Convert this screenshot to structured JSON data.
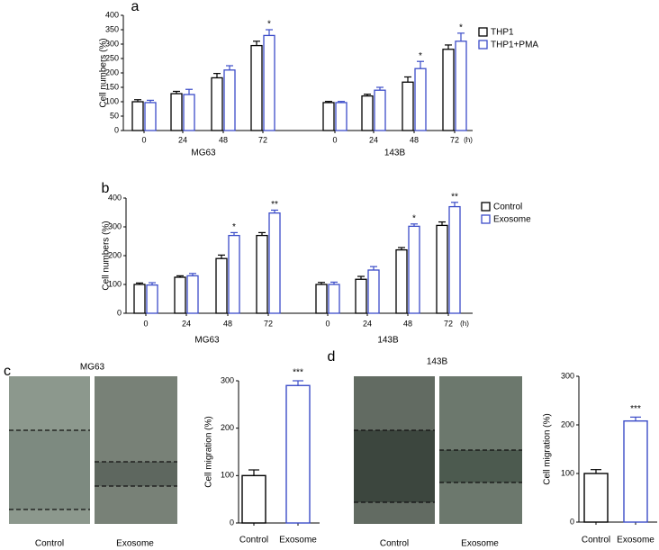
{
  "chart_data": [
    {
      "panel": "a",
      "type": "bar",
      "ylabel": "Cell numbers (%)",
      "ylim": [
        0,
        400
      ],
      "yticks": [
        0,
        50,
        100,
        150,
        200,
        250,
        300,
        350,
        400
      ],
      "x_unit": "(h)",
      "groups": [
        {
          "name": "MG63",
          "categories": [
            "0",
            "24",
            "48",
            "72"
          ]
        },
        {
          "name": "143B",
          "categories": [
            "0",
            "24",
            "48",
            "72"
          ]
        }
      ],
      "series": [
        {
          "name": "THP1",
          "color": "#000000",
          "values": [
            [
              100,
              128,
              183,
              295
            ],
            [
              97,
              120,
              168,
              282
            ]
          ],
          "errors": [
            [
              7,
              8,
              15,
              15
            ],
            [
              4,
              6,
              18,
              15
            ]
          ]
        },
        {
          "name": "THP1+PMA",
          "color": "#3b4cc8",
          "values": [
            [
              97,
              125,
              210,
              330
            ],
            [
              97,
              140,
              215,
              310
            ]
          ],
          "errors": [
            [
              8,
              18,
              15,
              20
            ],
            [
              4,
              10,
              25,
              28
            ]
          ],
          "significance": [
            [
              null,
              null,
              null,
              "*"
            ],
            [
              null,
              null,
              "*",
              "*"
            ]
          ]
        }
      ]
    },
    {
      "panel": "b",
      "type": "bar",
      "ylabel": "Cell numbers (%)",
      "ylim": [
        0,
        400
      ],
      "yticks": [
        0,
        100,
        200,
        300,
        400
      ],
      "x_unit": "(h)",
      "groups": [
        {
          "name": "MG63",
          "categories": [
            "0",
            "24",
            "48",
            "72"
          ]
        },
        {
          "name": "143B",
          "categories": [
            "0",
            "24",
            "48",
            "72"
          ]
        }
      ],
      "series": [
        {
          "name": "Control",
          "color": "#000000",
          "values": [
            [
              100,
              125,
              190,
              270
            ],
            [
              100,
              118,
              220,
              305
            ]
          ],
          "errors": [
            [
              5,
              5,
              12,
              10
            ],
            [
              7,
              10,
              8,
              12
            ]
          ]
        },
        {
          "name": "Exosome",
          "color": "#3b4cc8",
          "values": [
            [
              98,
              130,
              270,
              348
            ],
            [
              100,
              150,
              302,
              370
            ]
          ],
          "errors": [
            [
              8,
              8,
              10,
              10
            ],
            [
              8,
              12,
              8,
              15
            ]
          ],
          "significance": [
            [
              null,
              null,
              "*",
              "**"
            ],
            [
              null,
              null,
              "*",
              "**"
            ]
          ]
        }
      ]
    },
    {
      "panel": "c",
      "type": "bar",
      "micrograph": {
        "title": "MG63",
        "labels": [
          "Control",
          "Exosome"
        ]
      },
      "ylabel": "Cell migration (%)",
      "ylim": [
        0,
        300
      ],
      "yticks": [
        0,
        100,
        200,
        300
      ],
      "categories": [
        "Control",
        "Exosome"
      ],
      "values": [
        100,
        290
      ],
      "errors": [
        12,
        10
      ],
      "colors": [
        "#000000",
        "#3b4cc8"
      ],
      "significance": [
        null,
        "***"
      ]
    },
    {
      "panel": "d",
      "type": "bar",
      "micrograph": {
        "title": "143B",
        "labels": [
          "Control",
          "Exosome"
        ]
      },
      "ylabel": "Cell migration (%)",
      "ylim": [
        0,
        300
      ],
      "yticks": [
        0,
        100,
        200,
        300
      ],
      "categories": [
        "Control",
        "Exosome"
      ],
      "values": [
        100,
        208
      ],
      "errors": [
        8,
        8
      ],
      "colors": [
        "#000000",
        "#3b4cc8"
      ],
      "significance": [
        null,
        "***"
      ]
    }
  ]
}
